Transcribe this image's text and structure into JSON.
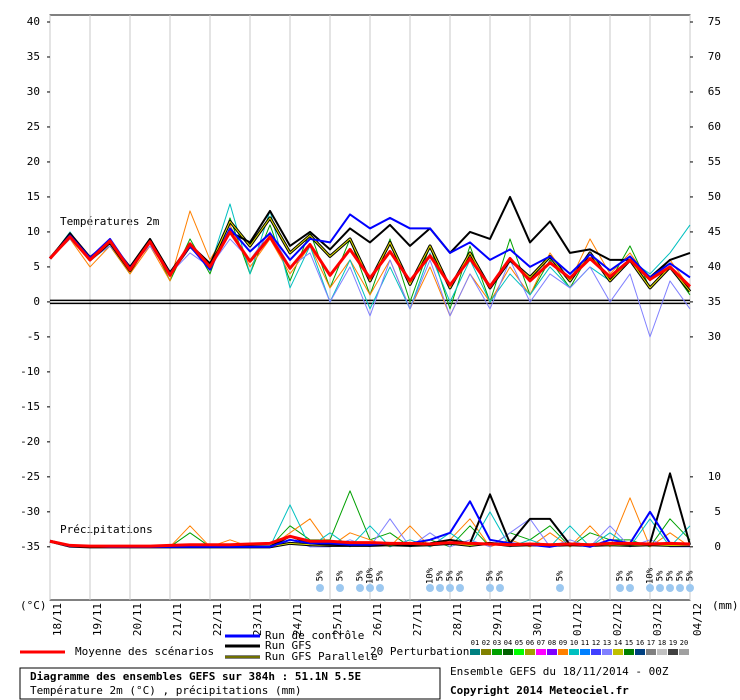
{
  "chart_data": {
    "type": "line",
    "title": "Diagramme des ensembles GEFS sur 384h : 51.1N 5.5E",
    "subtitle": "Température 2m (°C) , précipitations (mm)",
    "run_info": "Ensemble GEFS du 18/11/2014 - 00Z",
    "copyright": "Copyright 2014 Meteociel.fr",
    "y_label": "(°C)",
    "y2_label": "(mm)",
    "temp_annotation": "Températures 2m",
    "precip_annotation": "Précipitations",
    "perturbations_label": "20 Perturbations",
    "grid": true,
    "xlim": [
      0,
      384
    ],
    "xticks": [
      {
        "value": 0,
        "label": "18/11"
      },
      {
        "value": 24,
        "label": "19/11"
      },
      {
        "value": 48,
        "label": "20/11"
      },
      {
        "value": 72,
        "label": "21/11"
      },
      {
        "value": 96,
        "label": "22/11"
      },
      {
        "value": 120,
        "label": "23/11"
      },
      {
        "value": 144,
        "label": "24/11"
      },
      {
        "value": 168,
        "label": "25/11"
      },
      {
        "value": 192,
        "label": "26/11"
      },
      {
        "value": 216,
        "label": "27/11"
      },
      {
        "value": 240,
        "label": "28/11"
      },
      {
        "value": 264,
        "label": "29/11"
      },
      {
        "value": 288,
        "label": "30/11"
      },
      {
        "value": 312,
        "label": "01/12"
      },
      {
        "value": 336,
        "label": "02/12"
      },
      {
        "value": 360,
        "label": "03/12"
      },
      {
        "value": 384,
        "label": "04/12"
      }
    ],
    "ylim": [
      -42.6,
      41
    ],
    "yticks": [
      40,
      35,
      30,
      25,
      20,
      15,
      10,
      5,
      0,
      -5,
      -10,
      -15,
      -20,
      -25,
      -30,
      -35
    ],
    "y2lim": [
      -7.6,
      76
    ],
    "y2ticks": [
      75,
      70,
      65,
      60,
      55,
      50,
      45,
      40,
      35,
      30,
      10,
      5,
      0
    ],
    "x": [
      0,
      12,
      24,
      36,
      48,
      60,
      72,
      84,
      96,
      108,
      120,
      132,
      144,
      156,
      168,
      180,
      192,
      204,
      216,
      228,
      240,
      252,
      264,
      276,
      288,
      300,
      312,
      324,
      336,
      348,
      360,
      372,
      384
    ],
    "series": [
      {
        "name": "Moyenne des scénarios",
        "color": "#ff0000",
        "values": [
          6.2,
          9.3,
          6.0,
          8.7,
          4.6,
          8.6,
          3.8,
          8.3,
          5.0,
          10.0,
          5.8,
          9.3,
          4.8,
          8.2,
          3.8,
          7.5,
          3.4,
          7.2,
          3.0,
          6.6,
          2.4,
          6.2,
          2.2,
          6.2,
          3.0,
          5.6,
          3.4,
          6.2,
          3.6,
          6.0,
          3.2,
          5.0,
          2.2
        ],
        "precip": [
          0.8,
          0.2,
          0.1,
          0.1,
          0.1,
          0.1,
          0.2,
          0.3,
          0.3,
          0.3,
          0.4,
          0.5,
          1.5,
          0.8,
          0.8,
          0.6,
          0.6,
          0.5,
          0.5,
          0.4,
          0.6,
          0.5,
          0.4,
          0.3,
          0.4,
          0.3,
          0.4,
          0.3,
          0.5,
          0.5,
          0.4,
          0.5,
          0.4
        ]
      },
      {
        "name": "Run de contrôle",
        "color": "#0000ff",
        "values": [
          6.2,
          9.5,
          6.3,
          9.0,
          4.8,
          8.5,
          4.0,
          8.0,
          4.6,
          10.5,
          7.2,
          9.8,
          6.0,
          9.0,
          8.5,
          12.5,
          10.5,
          12.0,
          10.5,
          10.5,
          7.0,
          8.5,
          6.0,
          7.5,
          5.0,
          6.5,
          4.0,
          6.8,
          4.5,
          6.5,
          3.5,
          5.5,
          3.5
        ],
        "precip": [
          0.8,
          0.1,
          0.1,
          0,
          0,
          0,
          0,
          0,
          0,
          0,
          0,
          0,
          1,
          0.5,
          0.5,
          0.3,
          0.3,
          0.5,
          0.5,
          1,
          2,
          6.5,
          1,
          0.5,
          0.3,
          0,
          0.5,
          0,
          1,
          0.5,
          5,
          0.5,
          0.3
        ]
      },
      {
        "name": "Run GFS",
        "color": "#000000",
        "values": [
          6.2,
          9.8,
          6.4,
          8.6,
          5.0,
          9.0,
          4.2,
          8.2,
          5.5,
          10.0,
          8.5,
          13.0,
          8.0,
          10.0,
          7.5,
          10.5,
          8.5,
          11.0,
          8.0,
          10.5,
          7.0,
          10.0,
          9.0,
          15.0,
          8.5,
          11.5,
          7.0,
          7.5,
          6.0,
          6.0,
          3.5,
          6.0,
          7.0
        ],
        "precip": [
          0.8,
          0.1,
          0.1,
          0,
          0,
          0,
          0,
          0,
          0,
          0,
          0,
          0,
          1.5,
          0.5,
          0.3,
          0.2,
          0.2,
          0.4,
          0.2,
          0.5,
          1,
          0.5,
          7.5,
          0.5,
          4,
          4,
          0.3,
          0.2,
          0.5,
          0.3,
          0.5,
          10.5,
          0.3
        ]
      },
      {
        "name": "Run GFS Parallele",
        "color": "#e0e000",
        "values": [
          6.2,
          9.5,
          6.0,
          8.5,
          4.5,
          8.8,
          4.0,
          8.0,
          5.2,
          11.5,
          8.0,
          12.0,
          7.0,
          9.5,
          6.5,
          9.0,
          3.0,
          8.5,
          2.5,
          8.0,
          2.0,
          7.0,
          2.0,
          6.0,
          3.5,
          6.5,
          3.0,
          7.0,
          3.0,
          6.0,
          2.0,
          5.0,
          1.5
        ],
        "precip": [
          0.8,
          0.1,
          0,
          0,
          0,
          0,
          0,
          0,
          0,
          0,
          0,
          0,
          0.5,
          0.3,
          0.2,
          0.2,
          0.2,
          0.3,
          0.2,
          0.3,
          0.5,
          0.2,
          0.5,
          0.2,
          0.3,
          0.2,
          0.3,
          0.2,
          0.3,
          0.2,
          0.3,
          0.2,
          0.2
        ]
      }
    ],
    "perturbation_legend": [
      {
        "label": "01",
        "color": "#008080"
      },
      {
        "label": "02",
        "color": "#808000"
      },
      {
        "label": "03",
        "color": "#00a000"
      },
      {
        "label": "04",
        "color": "#006000"
      },
      {
        "label": "05",
        "color": "#00ff00"
      },
      {
        "label": "06",
        "color": "#a0a000"
      },
      {
        "label": "07",
        "color": "#ff00ff"
      },
      {
        "label": "08",
        "color": "#8000ff"
      },
      {
        "label": "09",
        "color": "#ff8000"
      },
      {
        "label": "10",
        "color": "#00c0c0"
      },
      {
        "label": "11",
        "color": "#0080ff"
      },
      {
        "label": "12",
        "color": "#4040ff"
      },
      {
        "label": "13",
        "color": "#8080ff"
      },
      {
        "label": "14",
        "color": "#c0c000"
      },
      {
        "label": "15",
        "color": "#008000"
      },
      {
        "label": "16",
        "color": "#004080"
      },
      {
        "label": "17",
        "color": "#808080"
      },
      {
        "label": "18",
        "color": "#c0c0c0"
      },
      {
        "label": "19",
        "color": "#404040"
      },
      {
        "label": "20",
        "color": "#a0a0a0"
      }
    ],
    "perturbations": [
      {
        "color": "#00a000",
        "values": [
          6.2,
          9,
          6,
          8,
          4,
          9,
          3,
          9,
          4,
          12,
          4,
          11,
          3,
          10,
          2,
          9,
          1,
          9,
          0,
          8,
          -1,
          8,
          0,
          9,
          1,
          6,
          2,
          7,
          3,
          8,
          2,
          5,
          1
        ],
        "precip": [
          0.8,
          0,
          0,
          0,
          0,
          0,
          0,
          2,
          0,
          0,
          0,
          0,
          3,
          1,
          1,
          8,
          1,
          2,
          0,
          1,
          0,
          3,
          0,
          2,
          1,
          3,
          0,
          2,
          1,
          1,
          0,
          4,
          1
        ]
      },
      {
        "color": "#ff8000",
        "values": [
          6.2,
          9,
          5,
          8,
          4,
          8,
          3,
          13,
          6,
          11,
          5,
          9,
          4,
          8,
          2,
          6,
          1,
          6,
          -1,
          5,
          -2,
          4,
          0,
          5,
          1,
          7,
          3,
          9,
          4,
          7,
          3,
          6,
          2
        ],
        "precip": [
          0.8,
          0,
          0,
          0,
          0,
          0,
          0,
          3,
          0,
          1,
          0,
          0,
          2,
          4,
          0,
          2,
          1,
          0,
          3,
          0,
          1,
          4,
          0,
          1,
          0,
          2,
          0,
          3,
          0,
          7,
          0,
          2,
          0
        ]
      },
      {
        "color": "#00c0c0",
        "values": [
          6.2,
          10,
          6,
          8,
          5,
          9,
          4,
          8,
          5,
          14,
          4,
          13,
          2,
          8,
          0,
          6,
          -1,
          5,
          -1,
          7,
          0,
          6,
          0,
          4,
          1,
          5,
          2,
          5,
          3,
          6,
          4,
          7,
          11
        ],
        "precip": [
          0.8,
          0,
          0,
          0,
          0,
          0,
          0,
          0,
          0,
          0,
          0,
          0,
          6,
          0,
          2,
          0,
          3,
          0,
          1,
          0,
          2,
          0,
          5,
          0,
          1,
          0,
          3,
          0,
          2,
          0,
          4,
          0,
          3
        ]
      },
      {
        "color": "#8080ff",
        "values": [
          6.2,
          9,
          6,
          8,
          5,
          8,
          4,
          7,
          5,
          9,
          6,
          10,
          5,
          7,
          0,
          5,
          -2,
          6,
          -1,
          6,
          -2,
          4,
          -1,
          6,
          0,
          4,
          2,
          5,
          0,
          4,
          -5,
          3,
          -1
        ],
        "precip": [
          0.8,
          0,
          0,
          0,
          0,
          0,
          0,
          0,
          0,
          0,
          0,
          0,
          1,
          0,
          0,
          1,
          0,
          4,
          0,
          2,
          0,
          1,
          0,
          2,
          4,
          0,
          1,
          0,
          3,
          0,
          1,
          0,
          0
        ]
      }
    ],
    "snow": {
      "x": [
        162,
        174,
        186,
        192,
        198,
        228,
        234,
        240,
        246,
        264,
        270,
        306,
        342,
        348,
        360,
        366,
        372,
        378,
        384
      ],
      "values": [
        5,
        5,
        5,
        10,
        5,
        10,
        5,
        5,
        5,
        5,
        5,
        5,
        5,
        5,
        10,
        5,
        5,
        5,
        5
      ],
      "value_labels": [
        "5%",
        "5%",
        "5%",
        "10%",
        "5%",
        "10%",
        "5%",
        "5%",
        "5%",
        "5%",
        "5%",
        "5%",
        "5%",
        "5%",
        "10%",
        "5%",
        "5%",
        "5%",
        "5%"
      ]
    }
  }
}
